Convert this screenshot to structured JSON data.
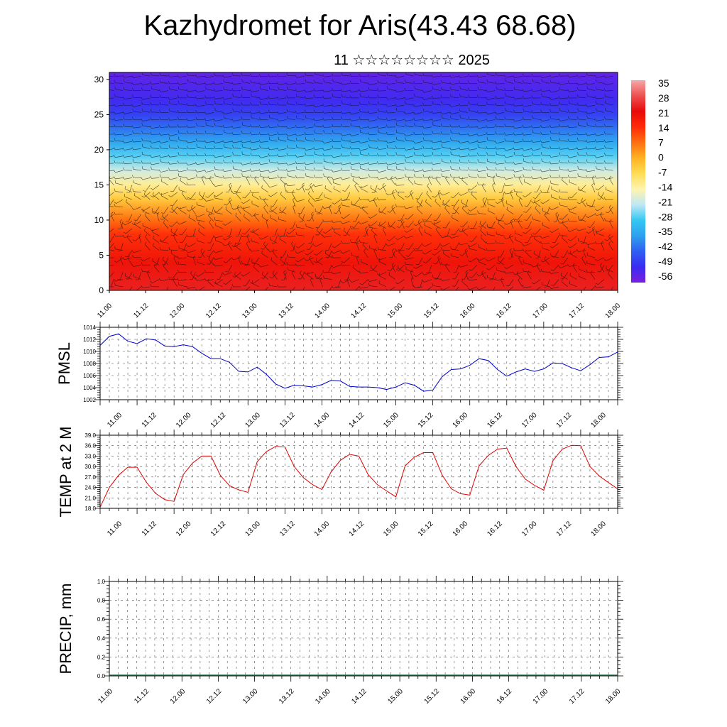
{
  "title": "Kazhydromet for Aris(43.43 68.68)",
  "subtitle": "11 ☆☆☆☆☆☆☆☆ 2025",
  "chart_data": [
    {
      "type": "heatmap",
      "name": "upper-air temperature and wind cross-section",
      "x_ticks": [
        "11.00",
        "11.12",
        "12.00",
        "12.12",
        "13.00",
        "13.12",
        "14.00",
        "14.12",
        "15.00",
        "15.12",
        "16.00",
        "16.12",
        "17.00",
        "17.12",
        "18.00"
      ],
      "y_ticks": [
        "0",
        "5",
        "10",
        "15",
        "20",
        "25",
        "30"
      ],
      "ylim": [
        0,
        31
      ],
      "colorbar": {
        "labels": [
          "35",
          "28",
          "21",
          "14",
          "7",
          "0",
          "-7",
          "-14",
          "-21",
          "-28",
          "-35",
          "-42",
          "-49",
          "-56"
        ],
        "range": [
          -63,
          38
        ],
        "colors": [
          "#7a1ee0",
          "#3a2cf2",
          "#2f5ef2",
          "#2fa0ef",
          "#33c8f2",
          "#bfe8f5",
          "#fff4b0",
          "#ffdd55",
          "#ffb222",
          "#ff7010",
          "#ff2a08",
          "#e80a0a",
          "#ee5050",
          "#f5a8a8"
        ]
      },
      "temperature_profile": {
        "height": [
          0,
          4,
          8,
          10,
          13,
          15,
          17,
          19,
          21,
          23,
          25,
          27,
          29,
          31
        ],
        "value": [
          25,
          20,
          14,
          7,
          -5,
          -14,
          -22,
          -30,
          -38,
          -45,
          -52,
          -56,
          -58,
          -60
        ]
      },
      "warm_spots_x": [
        13.08,
        15.1,
        16.1,
        17.1
      ],
      "barbs": "wind barbs overlaid"
    },
    {
      "type": "line",
      "ylabel": "PMSL",
      "x_ticks": [
        "11.00",
        "11.12",
        "12.00",
        "12.12",
        "13.00",
        "13.12",
        "14.00",
        "14.12",
        "15.00",
        "15.12",
        "16.00",
        "16.12",
        "17.00",
        "17.12",
        "18.00"
      ],
      "y_ticks": [
        "1002",
        "1004",
        "1006",
        "1008",
        "1010",
        "1012",
        "1014"
      ],
      "ylim": [
        1002,
        1014
      ],
      "color": "#0000cc",
      "x": [
        11.0,
        11.125,
        11.25,
        11.375,
        11.5,
        11.625,
        11.75,
        11.875,
        12.0,
        12.125,
        12.25,
        12.375,
        12.5,
        12.625,
        12.75,
        12.875,
        13.0,
        13.125,
        13.25,
        13.375,
        13.5,
        13.625,
        13.75,
        13.875,
        14.0,
        14.125,
        14.25,
        14.375,
        14.5,
        14.625,
        14.75,
        14.875,
        15.0,
        15.125,
        15.25,
        15.375,
        15.5,
        15.625,
        15.75,
        15.875,
        16.0,
        16.125,
        16.25,
        16.375,
        16.5,
        16.625,
        16.75,
        16.875,
        17.0,
        17.125,
        17.25,
        17.375,
        17.5,
        17.625,
        17.75,
        17.875,
        18.0
      ],
      "y": [
        1011.0,
        1012.5,
        1012.9,
        1011.7,
        1011.3,
        1012.1,
        1011.9,
        1010.9,
        1010.8,
        1011.1,
        1010.8,
        1009.7,
        1008.8,
        1008.8,
        1008.2,
        1006.7,
        1006.6,
        1007.4,
        1006.2,
        1004.6,
        1003.9,
        1004.4,
        1004.3,
        1004.1,
        1004.5,
        1005.2,
        1005.1,
        1004.2,
        1004.1,
        1004.1,
        1004.0,
        1003.7,
        1004.1,
        1004.8,
        1004.4,
        1003.4,
        1003.6,
        1005.8,
        1007.0,
        1007.1,
        1007.7,
        1008.8,
        1008.5,
        1007.0,
        1005.9,
        1006.6,
        1007.1,
        1006.7,
        1007.1,
        1008.1,
        1008.0,
        1007.3,
        1006.8,
        1007.8,
        1009.0,
        1009.1,
        1009.9
      ]
    },
    {
      "type": "line",
      "ylabel": "TEMP at 2 M",
      "x_ticks": [
        "11.00",
        "11.12",
        "12.00",
        "12.12",
        "13.00",
        "13.12",
        "14.00",
        "14.12",
        "15.00",
        "15.12",
        "16.00",
        "16.12",
        "17.00",
        "17.12",
        "18.00"
      ],
      "y_ticks": [
        "18.0",
        "21.0",
        "24.0",
        "27.0",
        "30.0",
        "33.0",
        "36.0",
        "39.0"
      ],
      "ylim": [
        18,
        39
      ],
      "color": "#dd0000",
      "x": [
        11.0,
        11.125,
        11.25,
        11.375,
        11.5,
        11.625,
        11.75,
        11.875,
        12.0,
        12.125,
        12.25,
        12.375,
        12.5,
        12.625,
        12.75,
        12.875,
        13.0,
        13.125,
        13.25,
        13.375,
        13.5,
        13.625,
        13.75,
        13.875,
        14.0,
        14.125,
        14.25,
        14.375,
        14.5,
        14.625,
        14.75,
        14.875,
        15.0,
        15.125,
        15.25,
        15.375,
        15.5,
        15.625,
        15.75,
        15.875,
        16.0,
        16.125,
        16.25,
        16.375,
        16.5,
        16.625,
        16.75,
        16.875,
        17.0,
        17.125,
        17.25,
        17.375,
        17.5,
        17.625,
        17.75,
        17.875,
        18.0
      ],
      "y": [
        18.3,
        24.0,
        27.5,
        29.8,
        29.8,
        25.5,
        22.3,
        20.5,
        20.0,
        27.7,
        31.0,
        33.0,
        33.0,
        27.5,
        24.5,
        23.3,
        22.6,
        31.4,
        34.3,
        35.8,
        35.6,
        30.0,
        26.8,
        24.8,
        23.4,
        28.5,
        31.8,
        33.5,
        33.0,
        27.7,
        24.8,
        23.0,
        21.3,
        30.2,
        32.7,
        34.0,
        34.0,
        27.6,
        23.6,
        22.2,
        21.8,
        30.2,
        33.2,
        35.0,
        35.3,
        30.0,
        26.4,
        24.6,
        23.2,
        31.7,
        35.0,
        36.1,
        36.0,
        30.0,
        27.3,
        25.4,
        23.6
      ]
    },
    {
      "type": "bar",
      "ylabel": "PRECIP, mm",
      "x_ticks": [
        "11.00",
        "11.12",
        "12.00",
        "12.12",
        "13.00",
        "13.12",
        "14.00",
        "14.12",
        "15.00",
        "15.12",
        "16.00",
        "16.12",
        "17.00",
        "17.12",
        "18.00"
      ],
      "y_ticks": [
        "0.0",
        "0.2",
        "0.4",
        "0.6",
        "0.8",
        "1.0"
      ],
      "ylim": [
        0,
        1.0
      ],
      "values": [
        0,
        0,
        0,
        0,
        0,
        0,
        0,
        0,
        0,
        0,
        0,
        0,
        0,
        0,
        0,
        0,
        0,
        0,
        0,
        0,
        0,
        0,
        0,
        0,
        0,
        0,
        0,
        0,
        0,
        0,
        0,
        0,
        0,
        0,
        0,
        0,
        0,
        0,
        0,
        0,
        0,
        0,
        0,
        0,
        0,
        0,
        0,
        0,
        0,
        0,
        0,
        0,
        0,
        0,
        0,
        0,
        0
      ]
    }
  ]
}
